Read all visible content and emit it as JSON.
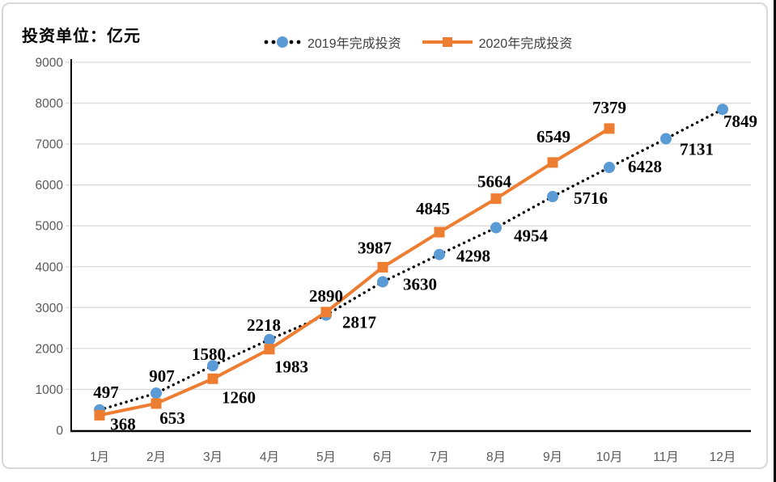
{
  "header": {
    "unit_label": "投资单位：亿元"
  },
  "legend": {
    "items": [
      {
        "label": "2019年完成投资",
        "marker": "dotted-line-blue-circle",
        "marker_color": "#5B9BD5",
        "line_color": "#000000"
      },
      {
        "label": "2020年完成投资",
        "marker": "solid-line-orange-square",
        "marker_color": "#ED7D31",
        "line_color": "#ED7D31"
      }
    ]
  },
  "chart_data": {
    "type": "line",
    "title": "",
    "unit_label": "投资单位：亿元",
    "categories": [
      "1月",
      "2月",
      "3月",
      "4月",
      "5月",
      "6月",
      "7月",
      "8月",
      "9月",
      "10月",
      "11月",
      "12月"
    ],
    "series": [
      {
        "name": "2019年完成投资",
        "values": [
          497,
          907,
          1580,
          2218,
          2817,
          3630,
          4298,
          4954,
          5716,
          6428,
          7131,
          7849
        ],
        "marker": "circle",
        "marker_color": "#5B9BD5",
        "line_style": "dotted",
        "line_color": "#000000"
      },
      {
        "name": "2020年完成投资",
        "values": [
          368,
          653,
          1260,
          1983,
          2890,
          3987,
          4845,
          5664,
          6549,
          7379
        ],
        "marker": "square",
        "marker_color": "#ED7D31",
        "line_style": "solid",
        "line_color": "#ED7D31"
      }
    ],
    "xlabel": "",
    "ylabel": "亿元",
    "ylim": [
      0,
      9000
    ],
    "ytick_interval": 1000,
    "yticks": [
      0,
      1000,
      2000,
      3000,
      4000,
      5000,
      6000,
      7000,
      8000,
      9000
    ],
    "grid": true,
    "data_labels": true,
    "legend_position": "top-center",
    "gridline_color": "#D9D9D9",
    "axis_line_color": "#000000",
    "axis_text_color": "#595959"
  }
}
